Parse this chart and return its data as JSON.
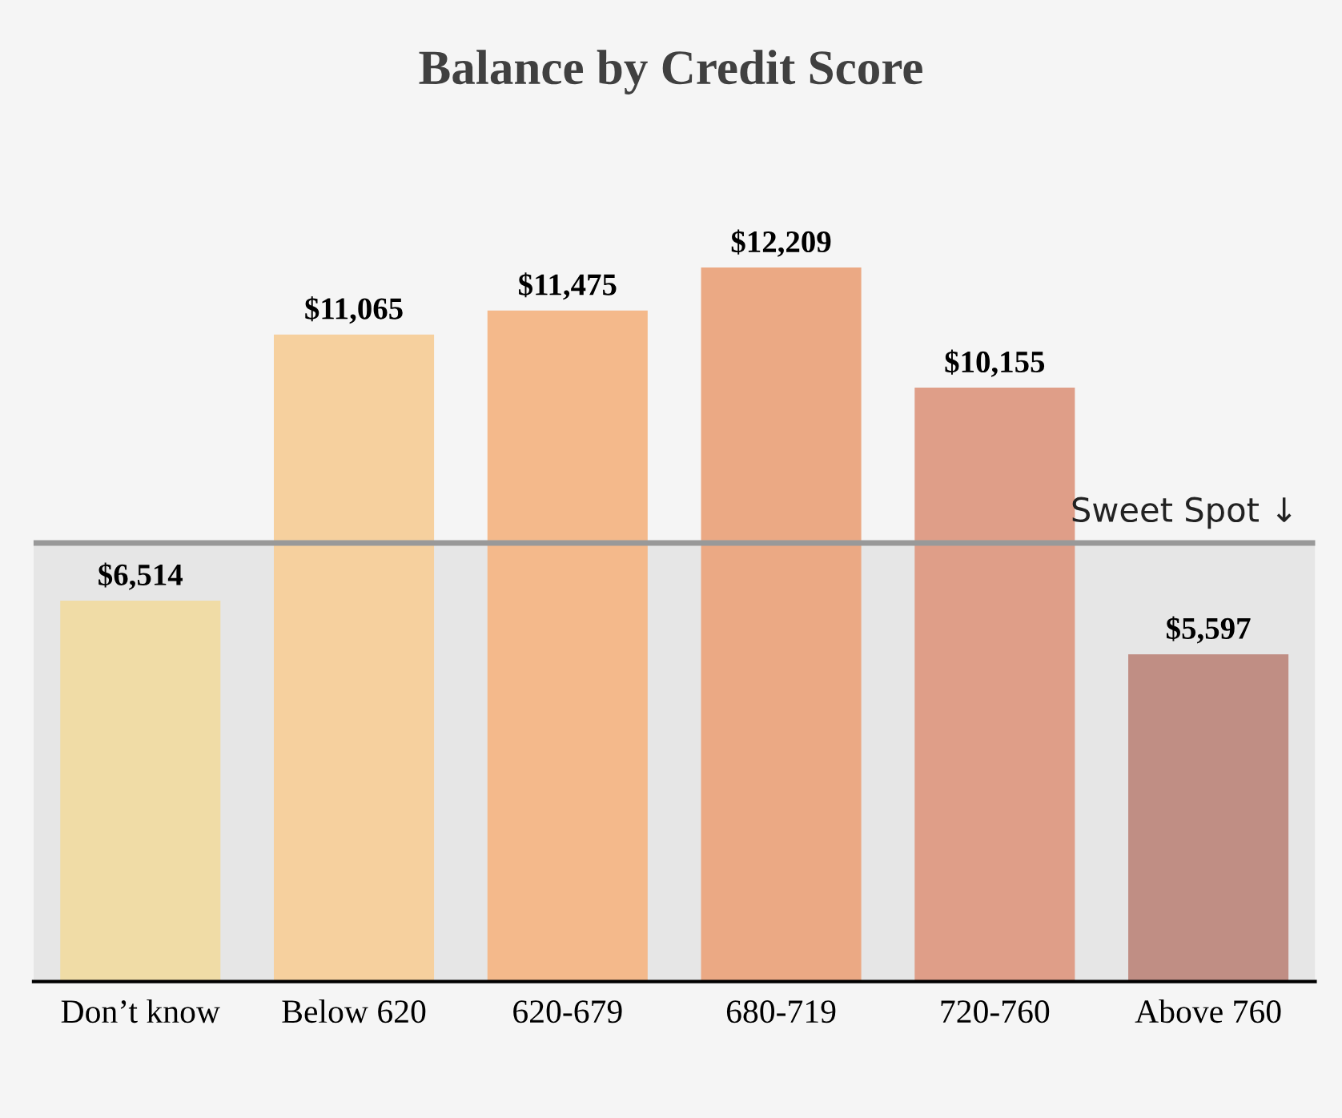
{
  "chart_data": {
    "type": "bar",
    "title": "Balance by Credit Score",
    "categories": [
      "Don’t know",
      "Below 620",
      "620-679",
      "680-719",
      "720-760",
      "Above 760"
    ],
    "values": [
      6514,
      11065,
      11475,
      12209,
      10155,
      5597
    ],
    "colors": [
      "#f0dca6",
      "#f6d09e",
      "#f4b98b",
      "#eba984",
      "#df9e88",
      "#c08e84"
    ],
    "value_labels": [
      "$6,514",
      "$11,065",
      "$11,475",
      "$12,209",
      "$10,155",
      "$5,597"
    ],
    "ref_lines": [
      {
        "axis": "y",
        "value": 7500,
        "label": "Sweet Spot ↓",
        "color": "#999999",
        "line_style": "solid"
      }
    ],
    "bands": [
      {
        "axis": "y",
        "from": 0,
        "to": 7500,
        "color": "#e6e6e6"
      }
    ],
    "grid": false,
    "legend": false,
    "tick_labels": "x"
  }
}
